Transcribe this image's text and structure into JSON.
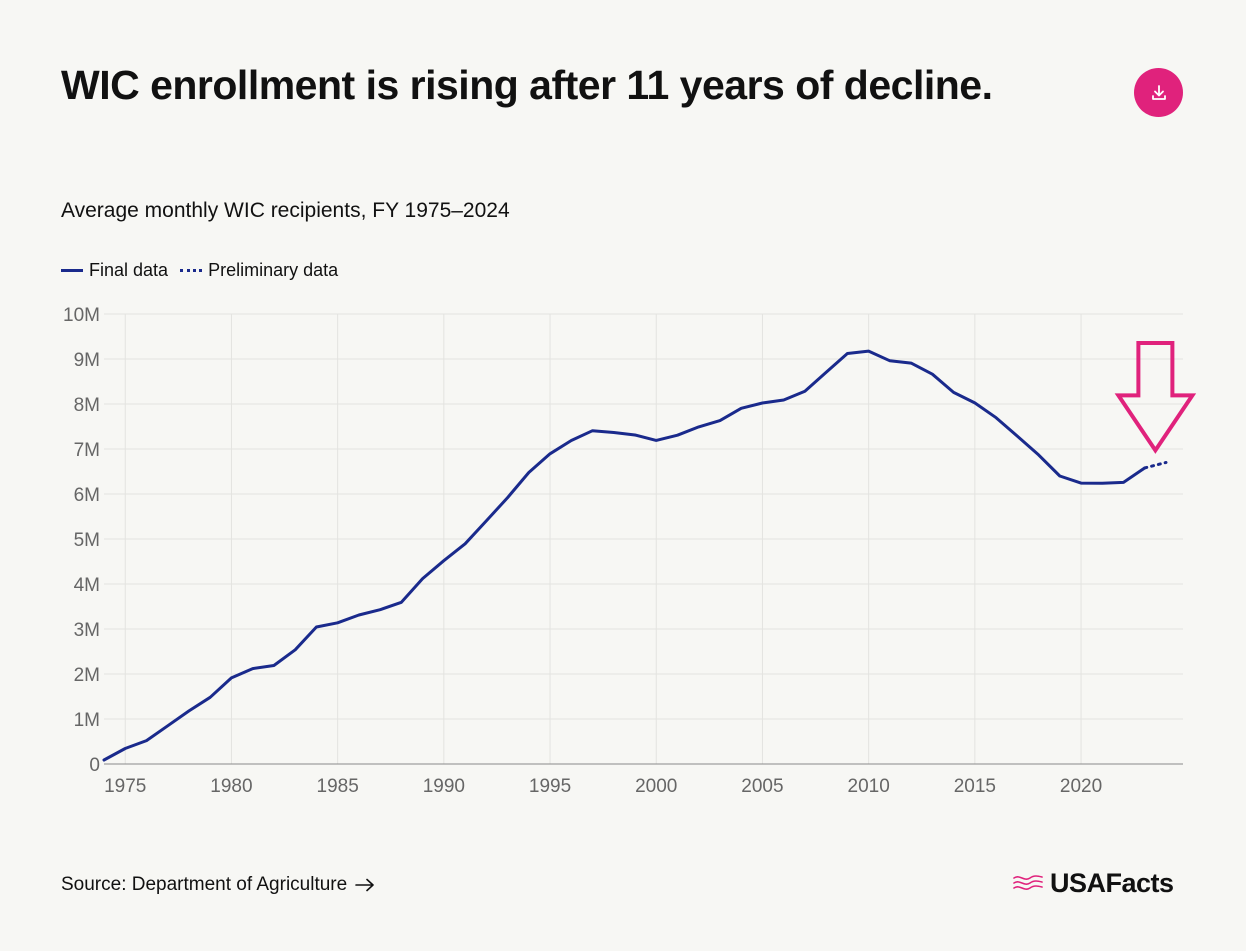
{
  "header": {
    "title": "WIC enrollment is rising after 11 years of decline.",
    "download_icon": "download-icon"
  },
  "subtitle": "Average monthly WIC recipients, FY 1975–2024",
  "legend": {
    "final_label": "Final data",
    "preliminary_label": "Preliminary data"
  },
  "footer": {
    "source_text": "Source: Department of Agriculture",
    "source_icon": "arrow-right-icon",
    "brand_name": "USAFacts",
    "brand_icon": "usafacts-flag-logo"
  },
  "colors": {
    "line": "#1a2a8c",
    "accent": "#e0227c",
    "grid": "#e3e3e0",
    "axis_text": "#666666",
    "background": "#f7f7f4"
  },
  "chart_data": {
    "type": "line",
    "title": "Average monthly WIC recipients, FY 1975–2024",
    "xlabel": "",
    "ylabel": "",
    "xlim": [
      1974,
      2024.8
    ],
    "ylim": [
      0,
      10000000
    ],
    "x_ticks": [
      1975,
      1980,
      1985,
      1990,
      1995,
      2000,
      2005,
      2010,
      2015,
      2020
    ],
    "y_ticks": [
      0,
      1000000,
      2000000,
      3000000,
      4000000,
      5000000,
      6000000,
      7000000,
      8000000,
      9000000,
      10000000
    ],
    "y_tick_labels": [
      "0",
      "1M",
      "2M",
      "3M",
      "4M",
      "5M",
      "6M",
      "7M",
      "8M",
      "9M",
      "10M"
    ],
    "grid": "vertical and horizontal",
    "legend_position": "top-left",
    "series": [
      {
        "name": "Final data",
        "style": "solid",
        "x": [
          1974,
          1975,
          1976,
          1977,
          1978,
          1979,
          1980,
          1981,
          1982,
          1983,
          1984,
          1985,
          1986,
          1987,
          1988,
          1989,
          1990,
          1991,
          1992,
          1993,
          1994,
          1995,
          1996,
          1997,
          1998,
          1999,
          2000,
          2001,
          2002,
          2003,
          2004,
          2005,
          2006,
          2007,
          2008,
          2009,
          2010,
          2011,
          2012,
          2013,
          2014,
          2015,
          2016,
          2017,
          2018,
          2019,
          2020,
          2021,
          2022,
          2023
        ],
        "values": [
          88000,
          344000,
          520000,
          848000,
          1181000,
          1483000,
          1914000,
          2119000,
          2189000,
          2537000,
          3045000,
          3138000,
          3312000,
          3429000,
          3593000,
          4119000,
          4517000,
          4893000,
          5403000,
          5921000,
          6477000,
          6894000,
          7188000,
          7407000,
          7367000,
          7311000,
          7192000,
          7306000,
          7491000,
          7631000,
          7904000,
          8023000,
          8088000,
          8285000,
          8705000,
          9122000,
          9175000,
          8961000,
          8908000,
          8663000,
          8258000,
          8024000,
          7696000,
          7287000,
          6868000,
          6400000,
          6242000,
          6240000,
          6257000,
          6580000
        ]
      },
      {
        "name": "Preliminary data",
        "style": "dotted",
        "x": [
          2023,
          2024
        ],
        "values": [
          6580000,
          6700000
        ]
      }
    ],
    "annotations": [
      {
        "type": "arrow",
        "points_to_x": 2023.5,
        "points_to_value": 6970000,
        "color": "#e0227c"
      }
    ]
  }
}
